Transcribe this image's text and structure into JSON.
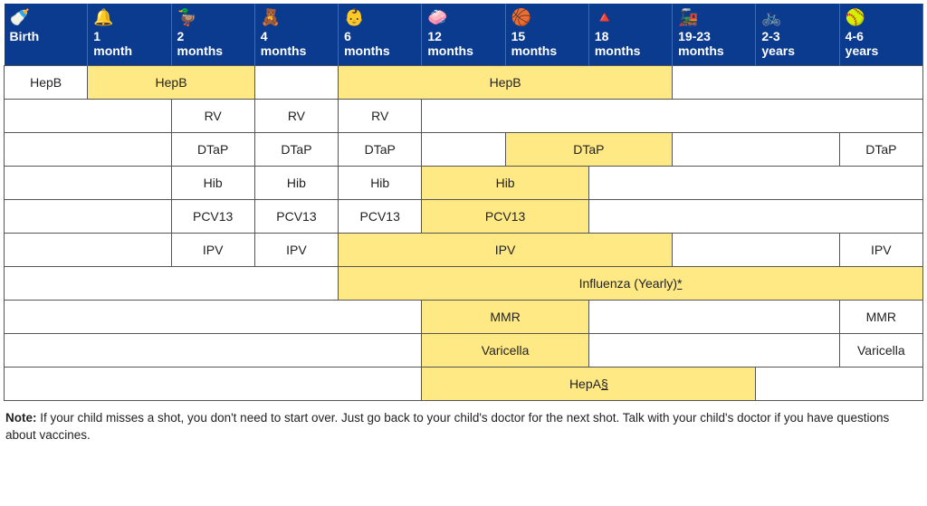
{
  "columns": [
    {
      "label": "Birth",
      "icon": "🍼"
    },
    {
      "label": "1 month",
      "icon": "🔔"
    },
    {
      "label": "2 months",
      "icon": "🦆"
    },
    {
      "label": "4 months",
      "icon": "🧸"
    },
    {
      "label": "6 months",
      "icon": "👶"
    },
    {
      "label": "12 months",
      "icon": "🧼"
    },
    {
      "label": "15 months",
      "icon": "🏀"
    },
    {
      "label": "18 months",
      "icon": "🔺"
    },
    {
      "label": "19-23 months",
      "icon": "🚂"
    },
    {
      "label": "2-3 years",
      "icon": "🚲"
    },
    {
      "label": "4-6 years",
      "icon": "🥎"
    }
  ],
  "rows": [
    [
      {
        "span": 1,
        "label": "HepB",
        "hl": false
      },
      {
        "span": 2,
        "label": "HepB",
        "hl": true
      },
      {
        "span": 1,
        "label": "",
        "hl": false
      },
      {
        "span": 4,
        "label": "HepB",
        "hl": true
      },
      {
        "span": 3,
        "label": "",
        "hl": false
      }
    ],
    [
      {
        "span": 2,
        "label": "",
        "hl": false
      },
      {
        "span": 1,
        "label": "RV",
        "hl": false
      },
      {
        "span": 1,
        "label": "RV",
        "hl": false
      },
      {
        "span": 1,
        "label": "RV",
        "hl": false
      },
      {
        "span": 6,
        "label": "",
        "hl": false
      }
    ],
    [
      {
        "span": 2,
        "label": "",
        "hl": false
      },
      {
        "span": 1,
        "label": "DTaP",
        "hl": false
      },
      {
        "span": 1,
        "label": "DTaP",
        "hl": false
      },
      {
        "span": 1,
        "label": "DTaP",
        "hl": false
      },
      {
        "span": 1,
        "label": "",
        "hl": false
      },
      {
        "span": 2,
        "label": "DTaP",
        "hl": true
      },
      {
        "span": 2,
        "label": "",
        "hl": false
      },
      {
        "span": 1,
        "label": "DTaP",
        "hl": false
      }
    ],
    [
      {
        "span": 2,
        "label": "",
        "hl": false
      },
      {
        "span": 1,
        "label": "Hib",
        "hl": false
      },
      {
        "span": 1,
        "label": "Hib",
        "hl": false
      },
      {
        "span": 1,
        "label": "Hib",
        "hl": false
      },
      {
        "span": 2,
        "label": "Hib",
        "hl": true
      },
      {
        "span": 4,
        "label": "",
        "hl": false
      }
    ],
    [
      {
        "span": 2,
        "label": "",
        "hl": false
      },
      {
        "span": 1,
        "label": "PCV13",
        "hl": false
      },
      {
        "span": 1,
        "label": "PCV13",
        "hl": false
      },
      {
        "span": 1,
        "label": "PCV13",
        "hl": false
      },
      {
        "span": 2,
        "label": "PCV13",
        "hl": true
      },
      {
        "span": 4,
        "label": "",
        "hl": false
      }
    ],
    [
      {
        "span": 2,
        "label": "",
        "hl": false
      },
      {
        "span": 1,
        "label": "IPV",
        "hl": false
      },
      {
        "span": 1,
        "label": "IPV",
        "hl": false
      },
      {
        "span": 4,
        "label": "IPV",
        "hl": true
      },
      {
        "span": 2,
        "label": "",
        "hl": false
      },
      {
        "span": 1,
        "label": "IPV",
        "hl": false
      }
    ],
    [
      {
        "span": 4,
        "label": "",
        "hl": false
      },
      {
        "span": 7,
        "label": "Influenza (Yearly)*",
        "hl": true,
        "flu": true
      }
    ],
    [
      {
        "span": 5,
        "label": "",
        "hl": false
      },
      {
        "span": 2,
        "label": "MMR",
        "hl": true
      },
      {
        "span": 3,
        "label": "",
        "hl": false
      },
      {
        "span": 1,
        "label": "MMR",
        "hl": false
      }
    ],
    [
      {
        "span": 5,
        "label": "",
        "hl": false
      },
      {
        "span": 2,
        "label": "Varicella",
        "hl": true
      },
      {
        "span": 3,
        "label": "",
        "hl": false
      },
      {
        "span": 1,
        "label": "Varicella",
        "hl": false
      }
    ],
    [
      {
        "span": 5,
        "label": "",
        "hl": false
      },
      {
        "span": 4,
        "label": "HepA§",
        "hl": true,
        "hepa": true
      },
      {
        "span": 2,
        "label": "",
        "hl": false
      }
    ]
  ],
  "note_label": "Note:",
  "note_text": " If your child misses a shot, you don't need to start over. Just go back to your child's doctor for the next shot. Talk with your child's doctor if you have questions about vaccines.",
  "colors": {
    "header_bg": "#0a3b8f",
    "highlight_bg": "#ffe985",
    "border": "#555555"
  }
}
